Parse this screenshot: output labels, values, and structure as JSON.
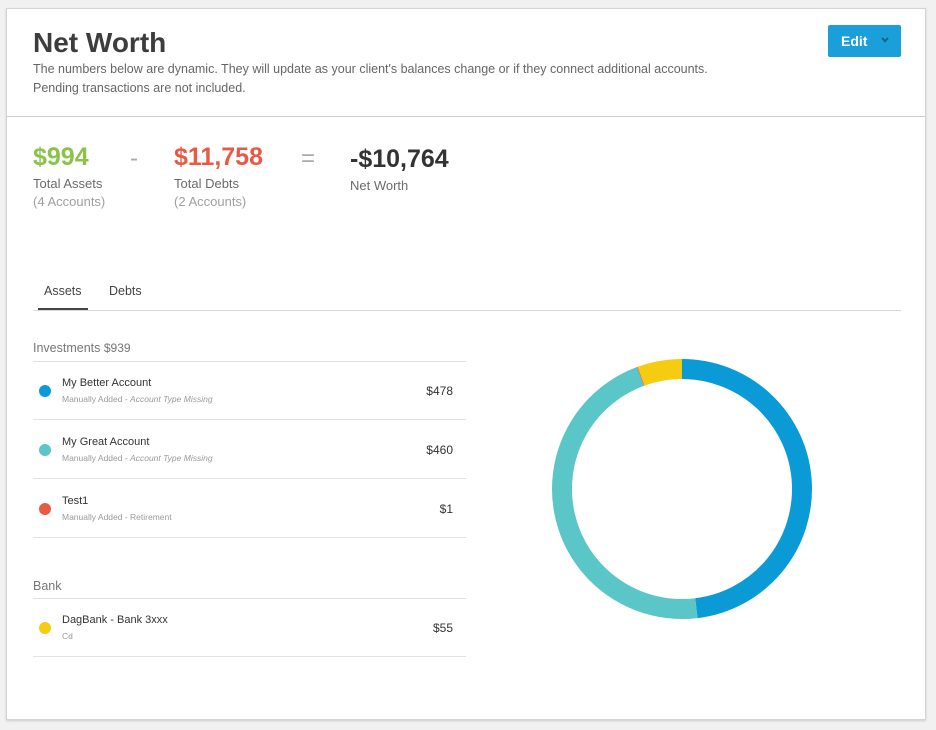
{
  "header": {
    "title": "Net Worth",
    "description_line1": "The numbers below are dynamic. They will update as your client's balances change or if they connect additional accounts.",
    "description_line2": "Pending transactions are not included.",
    "edit_label": "Edit"
  },
  "summary": {
    "assets_amount": "$994",
    "assets_label": "Total Assets",
    "assets_count": "(4 Accounts)",
    "minus": "-",
    "debts_amount": "$11,758",
    "debts_label": "Total Debts",
    "debts_count": "(2 Accounts)",
    "equals": "=",
    "net_amount": "-$10,764",
    "net_label": "Net Worth"
  },
  "tabs": [
    "Assets",
    "Debts"
  ],
  "sections": [
    {
      "title": "Investments",
      "total": "$939",
      "accounts": [
        {
          "name": "My Better Account",
          "meta_prefix": "Manually Added - ",
          "meta_detail": "Account Type Missing",
          "meta_italic": true,
          "balance": "$478",
          "color": "#0a9bd6",
          "value": 478
        },
        {
          "name": "My Great Account",
          "meta_prefix": "Manually Added - ",
          "meta_detail": "Account Type Missing",
          "meta_italic": true,
          "balance": "$460",
          "color": "#5bc6c8",
          "value": 460
        },
        {
          "name": "Test1",
          "meta_prefix": "Manually Added - ",
          "meta_detail": "Retirement",
          "meta_italic": false,
          "balance": "$1",
          "color": "#e85a45",
          "value": 1
        }
      ]
    },
    {
      "title": "Bank",
      "total": "",
      "accounts": [
        {
          "name": "DagBank - Bank 3xxx",
          "meta_prefix": "Cd",
          "meta_detail": "",
          "meta_italic": false,
          "balance": "$55",
          "color": "#f5cc10",
          "value": 55
        }
      ]
    }
  ],
  "colors": {
    "edit_button": "#1a9fdb",
    "assets_green": "#8bc34a",
    "debts_red": "#e85a45"
  }
}
